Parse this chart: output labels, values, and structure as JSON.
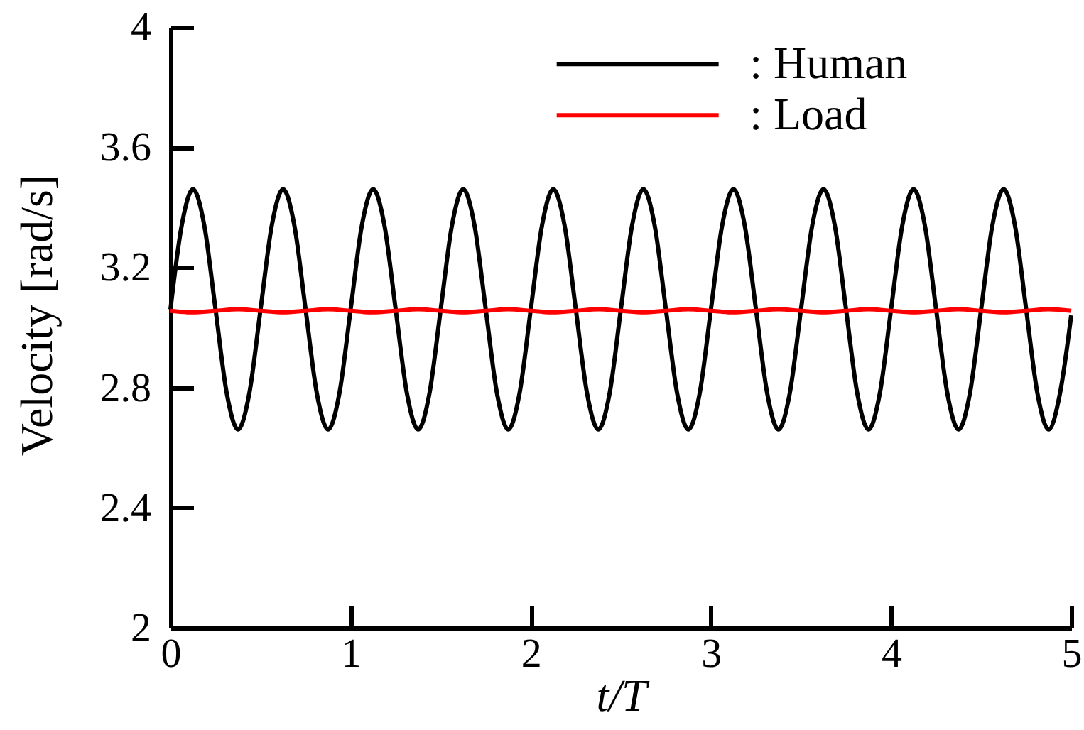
{
  "chart_data": {
    "type": "line",
    "xlabel": "t/T",
    "ylabel": "Velocity [rad/s]",
    "xlim": [
      0,
      5
    ],
    "ylim": [
      2,
      4
    ],
    "xticks": [
      0,
      1,
      2,
      3,
      4,
      5
    ],
    "yticks": [
      2,
      2.4,
      2.8,
      3.2,
      3.6,
      4
    ],
    "legend": "top right",
    "line_style": "solid",
    "series": [
      {
        "name": ": Human",
        "color": "#000000",
        "x": [
          0,
          0.0625,
          0.125,
          0.1875,
          0.25,
          0.3125,
          0.375,
          0.4375,
          0.5,
          0.5625,
          0.625,
          0.6875,
          0.75,
          0.8125,
          0.875,
          0.9375,
          1,
          1.0625,
          1.125,
          1.1875,
          1.25,
          1.3125,
          1.375,
          1.4375,
          1.5,
          1.5625,
          1.625,
          1.6875,
          1.75,
          1.8125,
          1.875,
          1.9375,
          2,
          2.0625,
          2.125,
          2.1875,
          2.25,
          2.3125,
          2.375,
          2.4375,
          2.5,
          2.5625,
          2.625,
          2.6875,
          2.75,
          2.8125,
          2.875,
          2.9375,
          3,
          3.0625,
          3.125,
          3.1875,
          3.25,
          3.3125,
          3.375,
          3.4375,
          3.5,
          3.5625,
          3.625,
          3.6875,
          3.75,
          3.8125,
          3.875,
          3.9375,
          4,
          4.0625,
          4.125,
          4.1875,
          4.25,
          4.3125,
          4.375,
          4.4375,
          4.5,
          4.5625,
          4.625,
          4.6875,
          4.75,
          4.8125,
          4.875,
          4.9375,
          5
        ],
        "values": [
          3.06,
          3.34,
          3.46,
          3.34,
          3.06,
          2.78,
          2.66,
          2.78,
          3.06,
          3.34,
          3.46,
          3.34,
          3.06,
          2.78,
          2.66,
          2.78,
          3.06,
          3.34,
          3.46,
          3.34,
          3.06,
          2.78,
          2.66,
          2.78,
          3.06,
          3.34,
          3.46,
          3.34,
          3.06,
          2.78,
          2.66,
          2.78,
          3.06,
          3.34,
          3.46,
          3.34,
          3.06,
          2.78,
          2.66,
          2.78,
          3.06,
          3.34,
          3.46,
          3.34,
          3.06,
          2.78,
          2.66,
          2.78,
          3.06,
          3.34,
          3.46,
          3.34,
          3.06,
          2.78,
          2.66,
          2.78,
          3.06,
          3.34,
          3.46,
          3.34,
          3.06,
          2.78,
          2.66,
          2.78,
          3.06,
          3.34,
          3.46,
          3.34,
          3.06,
          2.78,
          2.66,
          2.78,
          3.06,
          3.34,
          3.46,
          3.34,
          3.06,
          2.78,
          2.66,
          2.78,
          3.04
        ]
      },
      {
        "name": ": Load",
        "color": "#ff0000",
        "x": [
          0,
          0.125,
          0.25,
          0.375,
          0.5,
          0.625,
          0.75,
          0.875,
          1,
          1.125,
          1.25,
          1.375,
          1.5,
          1.625,
          1.75,
          1.875,
          2,
          2.125,
          2.25,
          2.375,
          2.5,
          2.625,
          2.75,
          2.875,
          3,
          3.125,
          3.25,
          3.375,
          3.5,
          3.625,
          3.75,
          3.875,
          4,
          4.125,
          4.25,
          4.375,
          4.5,
          4.625,
          4.75,
          4.875,
          5
        ],
        "values": [
          3.055,
          3.05,
          3.055,
          3.06,
          3.055,
          3.05,
          3.055,
          3.06,
          3.055,
          3.05,
          3.055,
          3.06,
          3.055,
          3.05,
          3.055,
          3.06,
          3.055,
          3.05,
          3.055,
          3.06,
          3.055,
          3.05,
          3.055,
          3.06,
          3.055,
          3.05,
          3.055,
          3.06,
          3.055,
          3.05,
          3.055,
          3.06,
          3.055,
          3.05,
          3.055,
          3.06,
          3.055,
          3.05,
          3.055,
          3.06,
          3.055
        ]
      }
    ]
  }
}
